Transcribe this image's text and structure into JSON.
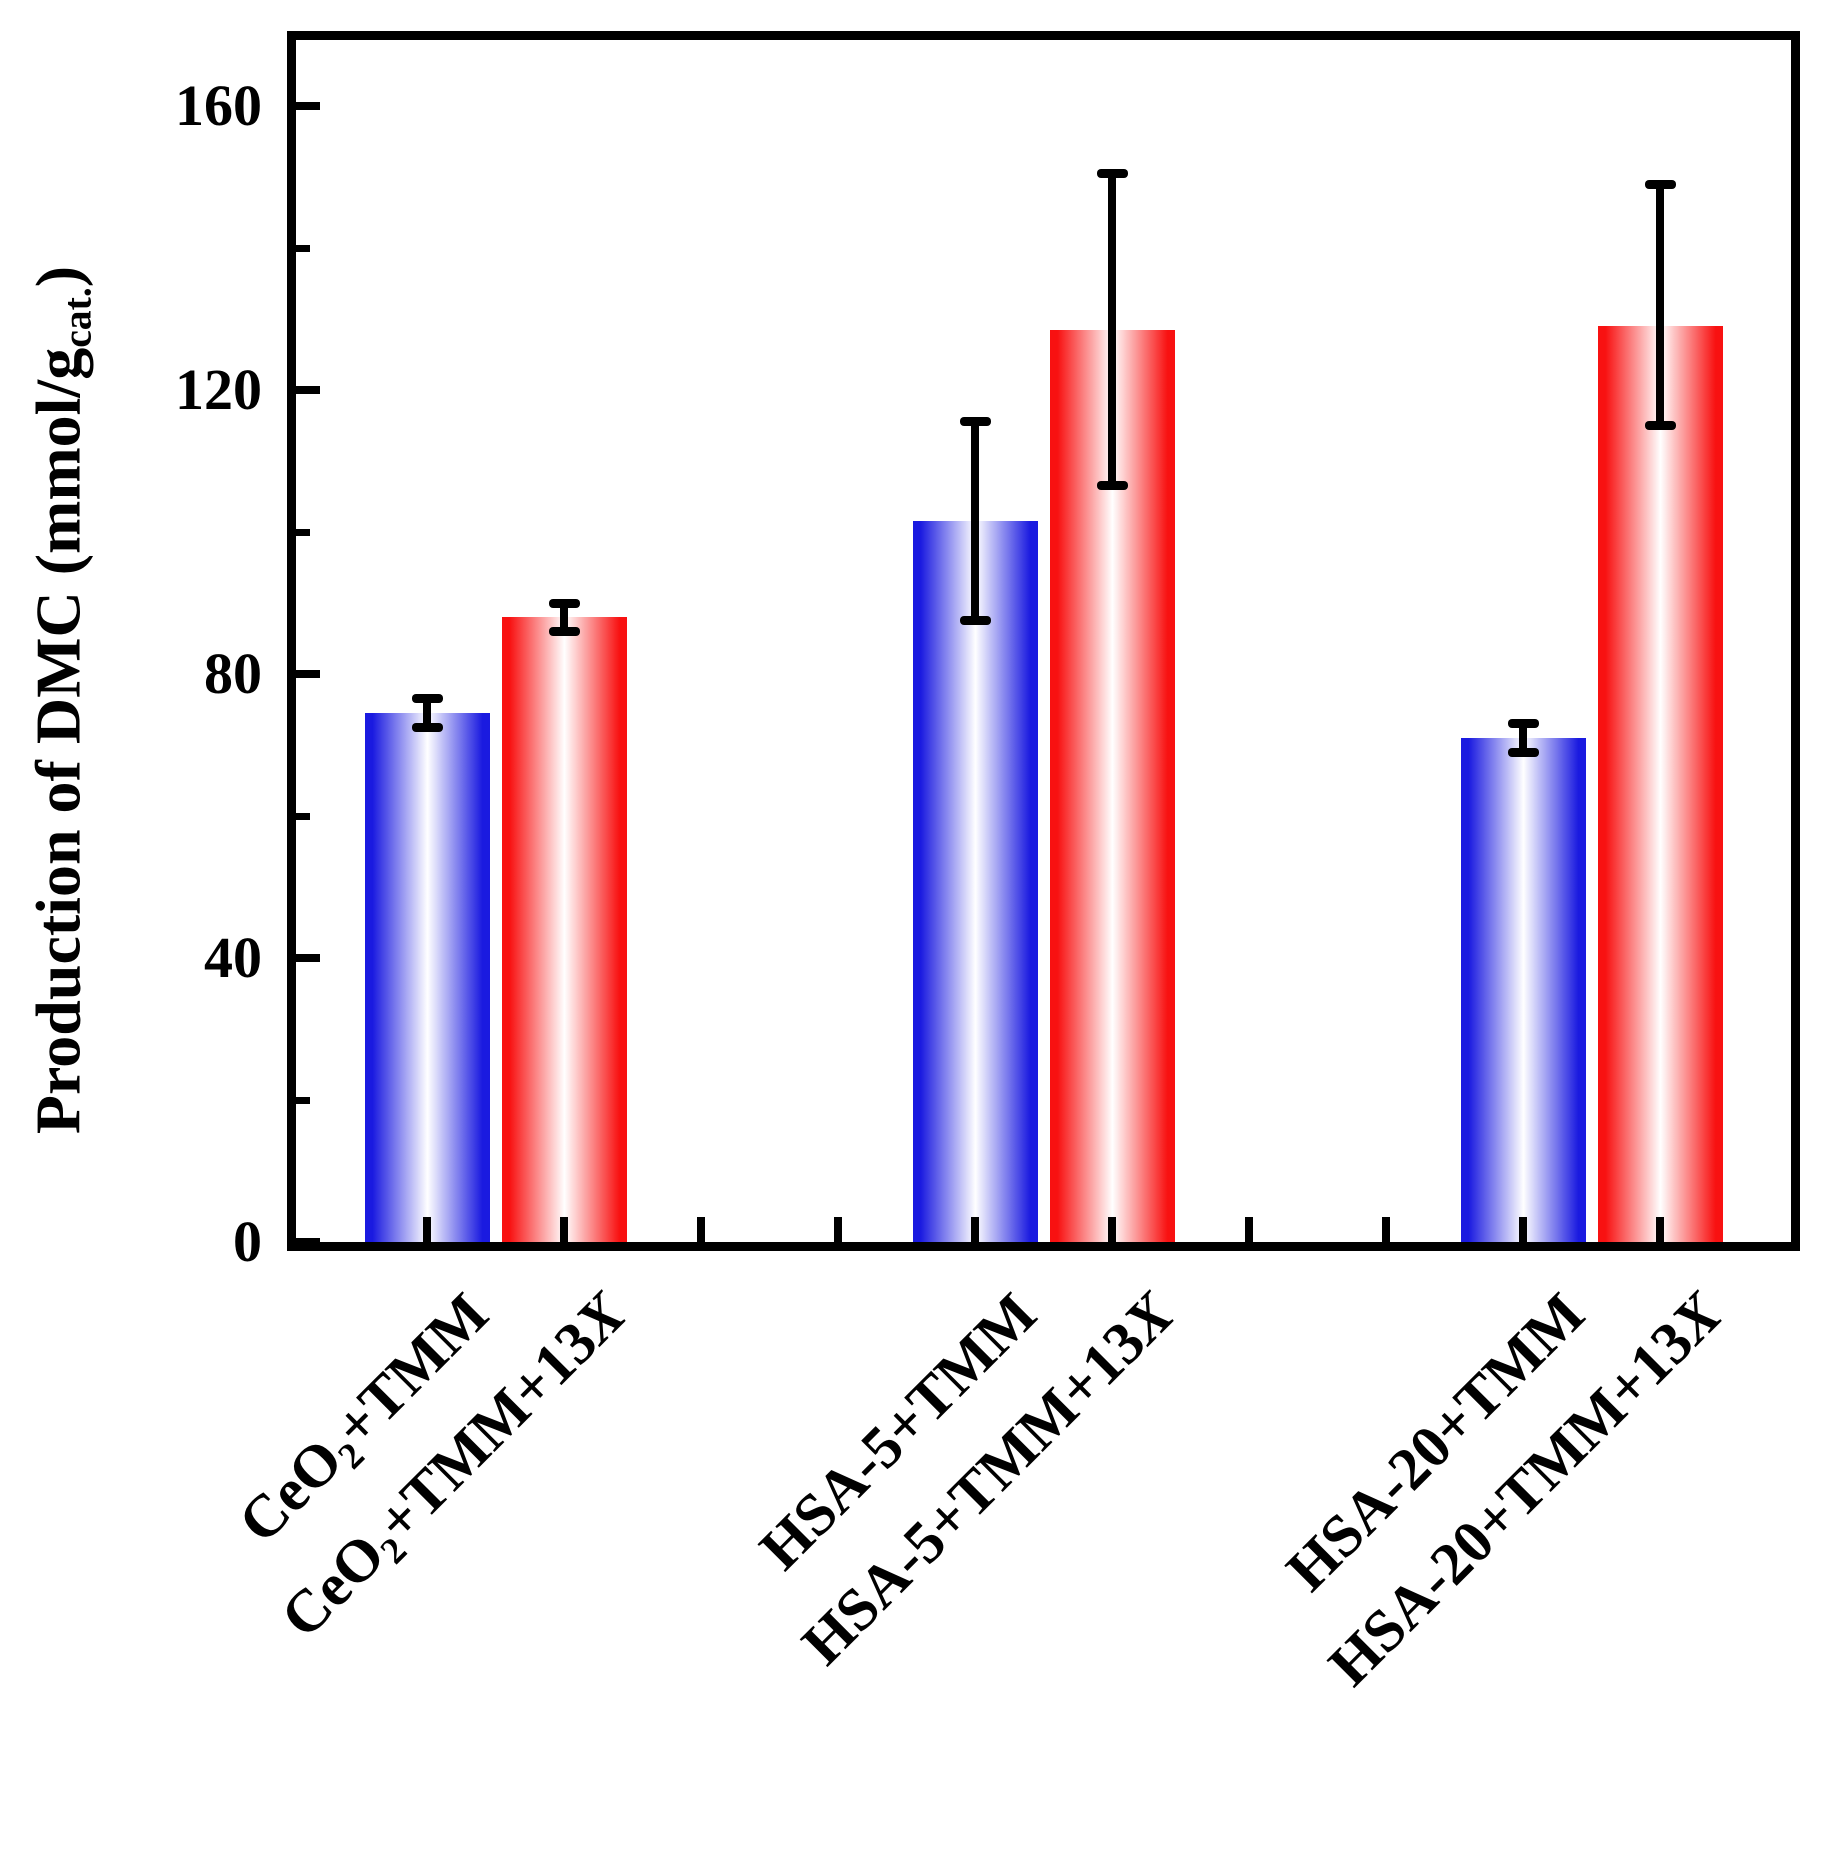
{
  "chart_data": {
    "type": "bar",
    "title": "",
    "xlabel": "",
    "ylabel": "Production of DMC (mmol/g_cat.)",
    "ylabel_parts": {
      "prefix": "Production of DMC (mmol/g",
      "subscript": "cat.",
      "suffix": ")"
    },
    "ylim": [
      0,
      169
    ],
    "grid": false,
    "legend": "none",
    "yticks": [
      {
        "value": 0,
        "label": "0"
      },
      {
        "value": 40,
        "label": "40"
      },
      {
        "value": 80,
        "label": "80"
      },
      {
        "value": 120,
        "label": "120"
      },
      {
        "value": 160,
        "label": "160"
      }
    ],
    "yminor_ticks": [
      20,
      60,
      100,
      140
    ],
    "categories": [
      "CeO2+TMM",
      "CeO2+TMM+13X",
      "HSA-5+TMM",
      "HSA-5+TMM+13X",
      "HSA-20+TMM",
      "HSA-20+TMM+13X"
    ],
    "x_slot_count": 10,
    "bars": [
      {
        "category": "CeO2+TMM",
        "slot": 0,
        "value": 74.5,
        "error_plus": 2,
        "error_minus": 2,
        "color": "#1a1ae0",
        "label_parts": [
          {
            "t": "CeO"
          },
          {
            "t": "2",
            "s": "sub"
          },
          {
            "t": "+TMM"
          }
        ]
      },
      {
        "category": "CeO2+TMM+13X",
        "slot": 1,
        "value": 88,
        "error_plus": 2,
        "error_minus": 2,
        "color": "#f81111",
        "label_parts": [
          {
            "t": "CeO"
          },
          {
            "t": "2",
            "s": "sub"
          },
          {
            "t": "+TMM+13"
          },
          {
            "t": "X",
            "s": "i"
          }
        ]
      },
      {
        "category": "HSA-5+TMM",
        "slot": 4,
        "value": 101.5,
        "error_plus": 14,
        "error_minus": 14,
        "color": "#1a1ae0",
        "label_parts": [
          {
            "t": "HSA-5+TMM"
          }
        ]
      },
      {
        "category": "HSA-5+TMM+13X",
        "slot": 5,
        "value": 128.5,
        "error_plus": 22,
        "error_minus": 22,
        "color": "#f81111",
        "label_parts": [
          {
            "t": "HSA-5+TMM+13"
          },
          {
            "t": "X",
            "s": "i"
          }
        ]
      },
      {
        "category": "HSA-20+TMM",
        "slot": 8,
        "value": 71,
        "error_plus": 2,
        "error_minus": 2,
        "color": "#1a1ae0",
        "label_parts": [
          {
            "t": "HSA-20+TMM"
          }
        ]
      },
      {
        "category": "HSA-20+TMM+13X",
        "slot": 9,
        "value": 129,
        "error_plus": 20,
        "error_minus": 14,
        "color": "#f81111",
        "label_parts": [
          {
            "t": "HSA-20+TMM+13"
          },
          {
            "t": "X",
            "s": "i"
          }
        ]
      }
    ],
    "bar_fill_style": "horizontal gradient: edge color -> white center -> edge color",
    "colors": {
      "blue_bar": "#1a1ae0",
      "red_bar": "#f81111",
      "error_bar": "#000000",
      "axis": "#000000",
      "background": "#ffffff"
    }
  }
}
